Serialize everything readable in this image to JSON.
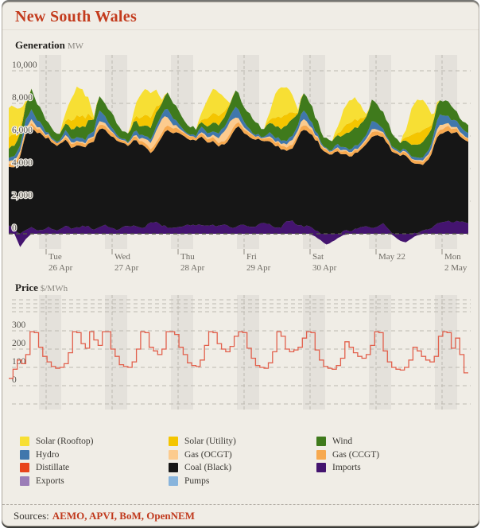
{
  "title": "New South Wales",
  "colors": {
    "background": "#F0EDE6",
    "band": "#E4E1DB",
    "grid": "#BDB9B0",
    "zero_line": "#55524C",
    "title_red": "#C33B1D",
    "text_gray": "#6E6B64",
    "price_line": "#E2604C",
    "source_red": "#C0391D",
    "fuels": {
      "solar_rooftop": "#F7DF34",
      "solar_utility": "#F4C500",
      "wind": "#3F7A1C",
      "hydro": "#4077AC",
      "gas_ocgt": "#FCCB8E",
      "gas_ccgt": "#F7A94F",
      "distillate": "#E8431C",
      "coal": "#161616",
      "imports": "#44146F",
      "exports": "#9B7DB7",
      "pumps": "#88B4DC"
    }
  },
  "generation": {
    "label": "Generation",
    "unit": "MW",
    "y_ticks": [
      {
        "v": 0,
        "label": "0"
      },
      {
        "v": 2000,
        "label": "2,000"
      },
      {
        "v": 4000,
        "label": "4,000"
      },
      {
        "v": 6000,
        "label": "6,000"
      },
      {
        "v": 8000,
        "label": "8,000"
      },
      {
        "v": 10000,
        "label": "10,000"
      }
    ],
    "x_ticks": [
      {
        "l1": "Tue",
        "l2": "26 Apr"
      },
      {
        "l1": "Wed",
        "l2": "27 Apr"
      },
      {
        "l1": "Thu",
        "l2": "28 Apr"
      },
      {
        "l1": "Fri",
        "l2": "29 Apr"
      },
      {
        "l1": "Sat",
        "l2": "30 Apr"
      },
      {
        "l1": "May 22",
        "l2": ""
      },
      {
        "l1": "Mon",
        "l2": "2 May"
      }
    ]
  },
  "price": {
    "label": "Price",
    "unit": "$/MWh",
    "y_ticks": [
      {
        "v": 0,
        "label": "0"
      },
      {
        "v": 100,
        "label": "100"
      },
      {
        "v": 200,
        "label": "200"
      },
      {
        "v": 300,
        "label": "300"
      }
    ]
  },
  "legend": {
    "columns": [
      [
        {
          "label": "Solar (Rooftop)",
          "key": "solar_rooftop"
        },
        {
          "label": "Hydro",
          "key": "hydro"
        },
        {
          "label": "Distillate",
          "key": "distillate"
        },
        {
          "label": "Exports",
          "key": "exports"
        }
      ],
      [
        {
          "label": "Solar (Utility)",
          "key": "solar_utility"
        },
        {
          "label": "Gas (OCGT)",
          "key": "gas_ocgt"
        },
        {
          "label": "Coal (Black)",
          "key": "coal"
        },
        {
          "label": "Pumps",
          "key": "pumps"
        }
      ],
      [
        {
          "label": "Wind",
          "key": "wind"
        },
        {
          "label": "Gas (CCGT)",
          "key": "gas_ccgt"
        },
        {
          "label": "Imports",
          "key": "imports"
        }
      ]
    ]
  },
  "sources": {
    "prefix": "Sources:",
    "list": "AEMO, APVI, BoM, OpenNEM"
  },
  "chart_data": [
    {
      "type": "area",
      "title": "Generation",
      "ylabel": "MW",
      "ylim": [
        -1000,
        11000
      ],
      "x_hours_step": 2,
      "x_start_label": "Mon 25 Apr 10:30",
      "series": [
        {
          "name": "Imports",
          "key": "imports",
          "values": [
            500,
            300,
            0,
            150,
            400,
            300,
            200,
            350,
            300,
            250,
            400,
            350,
            400,
            450,
            400,
            300,
            450,
            500,
            350,
            300,
            350,
            420,
            550,
            400,
            350,
            650,
            800,
            500,
            350,
            400,
            450,
            400,
            550,
            600,
            500,
            450,
            600,
            500,
            550,
            350,
            500,
            550,
            400,
            450,
            600,
            650,
            550,
            400,
            350,
            750,
            850,
            550,
            400,
            450,
            300,
            0,
            0,
            0,
            0,
            100,
            200,
            300,
            350,
            400,
            420,
            500,
            550,
            300,
            0,
            0,
            0,
            0,
            100,
            150,
            300,
            550,
            650,
            750,
            770,
            800,
            700,
            650
          ]
        },
        {
          "name": "Coal (Black)",
          "key": "coal",
          "values": [
            3750,
            3850,
            4600,
            5900,
            6150,
            5950,
            5700,
            5500,
            5200,
            5100,
            5300,
            5100,
            5000,
            4800,
            5100,
            5500,
            6000,
            5900,
            5650,
            5450,
            5150,
            5050,
            5250,
            5050,
            4950,
            4300,
            4600,
            5450,
            6000,
            5850,
            5600,
            5500,
            5250,
            5150,
            5350,
            5150,
            5100,
            4800,
            4900,
            5550,
            6050,
            5850,
            5600,
            5400,
            5100,
            5000,
            5200,
            4950,
            4850,
            4300,
            4500,
            5350,
            5900,
            5750,
            5500,
            5300,
            5000,
            4900,
            5050,
            4750,
            4600,
            4550,
            4700,
            5100,
            5650,
            5550,
            5400,
            5200,
            4900,
            4800,
            4900,
            4400,
            4150,
            4100,
            4300,
            4900,
            5450,
            5550,
            5450,
            5350,
            5100,
            5000
          ]
        },
        {
          "name": "Gas (CCGT)",
          "key": "gas_ccgt",
          "values": [
            200,
            210,
            190,
            240,
            260,
            230,
            200,
            180,
            160,
            150,
            190,
            210,
            220,
            200,
            210,
            230,
            280,
            250,
            220,
            190,
            160,
            150,
            200,
            230,
            240,
            220,
            230,
            250,
            300,
            270,
            240,
            200,
            170,
            160,
            210,
            220,
            220,
            200,
            210,
            230,
            280,
            250,
            220,
            190,
            160,
            150,
            200,
            220,
            220,
            220,
            230,
            250,
            300,
            270,
            240,
            200,
            170,
            160,
            190,
            200,
            190,
            180,
            190,
            210,
            260,
            240,
            220,
            190,
            160,
            150,
            170,
            180,
            180,
            180,
            190,
            230,
            300,
            280,
            260,
            220,
            190,
            180
          ]
        },
        {
          "name": "Gas (OCGT)",
          "key": "gas_ocgt",
          "values": [
            150,
            220,
            180,
            120,
            250,
            150,
            80,
            40,
            20,
            20,
            100,
            90,
            70,
            60,
            60,
            90,
            220,
            150,
            80,
            40,
            20,
            20,
            80,
            120,
            250,
            400,
            750,
            850,
            500,
            200,
            100,
            40,
            20,
            20,
            70,
            110,
            150,
            300,
            600,
            750,
            400,
            150,
            80,
            40,
            20,
            20,
            90,
            100,
            100,
            200,
            300,
            250,
            350,
            200,
            100,
            40,
            20,
            20,
            60,
            70,
            70,
            60,
            60,
            100,
            200,
            120,
            60,
            40,
            20,
            20,
            50,
            60,
            60,
            60,
            100,
            150,
            300,
            200,
            150,
            100,
            50,
            40
          ]
        },
        {
          "name": "Hydro",
          "key": "hydro",
          "values": [
            250,
            280,
            320,
            500,
            620,
            370,
            260,
            130,
            90,
            80,
            280,
            230,
            190,
            210,
            240,
            300,
            620,
            420,
            260,
            110,
            80,
            80,
            260,
            220,
            190,
            210,
            240,
            280,
            560,
            390,
            230,
            130,
            100,
            90,
            300,
            260,
            240,
            270,
            290,
            330,
            620,
            430,
            270,
            110,
            80,
            80,
            260,
            220,
            190,
            220,
            240,
            290,
            560,
            410,
            240,
            110,
            80,
            80,
            210,
            190,
            190,
            200,
            210,
            250,
            510,
            360,
            220,
            110,
            80,
            80,
            160,
            140,
            140,
            170,
            240,
            360,
            660,
            510,
            430,
            370,
            330,
            310
          ]
        },
        {
          "name": "Wind",
          "key": "wind",
          "values": [
            500,
            650,
            750,
            1000,
            1200,
            950,
            850,
            600,
            450,
            400,
            420,
            550,
            650,
            750,
            850,
            700,
            900,
            850,
            800,
            700,
            550,
            500,
            500,
            580,
            620,
            700,
            800,
            680,
            1000,
            900,
            820,
            600,
            450,
            380,
            330,
            420,
            480,
            550,
            620,
            680,
            1050,
            1000,
            950,
            800,
            620,
            560,
            500,
            650,
            800,
            900,
            950,
            800,
            1050,
            950,
            870,
            700,
            560,
            530,
            620,
            800,
            950,
            1100,
            1200,
            1050,
            1250,
            1150,
            1050,
            900,
            720,
            620,
            520,
            650,
            800,
            950,
            900,
            880,
            950,
            850,
            780,
            600,
            520,
            480
          ]
        },
        {
          "name": "Solar (Utility)",
          "key": "solar_utility",
          "values": [
            700,
            660,
            420,
            60,
            0,
            0,
            0,
            0,
            0,
            0,
            170,
            540,
            680,
            650,
            410,
            50,
            0,
            0,
            0,
            0,
            0,
            0,
            160,
            510,
            640,
            610,
            380,
            50,
            0,
            0,
            0,
            0,
            0,
            0,
            150,
            480,
            600,
            570,
            360,
            45,
            0,
            0,
            0,
            0,
            0,
            0,
            175,
            560,
            700,
            665,
            420,
            55,
            0,
            0,
            0,
            0,
            0,
            0,
            140,
            450,
            560,
            530,
            340,
            45,
            0,
            0,
            0,
            0,
            0,
            0,
            190,
            600,
            750,
            710,
            450,
            60,
            0,
            0,
            0,
            0,
            0,
            0
          ]
        },
        {
          "name": "Solar (Rooftop)",
          "key": "solar_rooftop",
          "values": [
            1850,
            1750,
            1100,
            160,
            0,
            0,
            0,
            0,
            0,
            0,
            430,
            1360,
            1700,
            1620,
            1020,
            130,
            0,
            0,
            0,
            0,
            0,
            0,
            400,
            1280,
            1600,
            1520,
            960,
            120,
            0,
            0,
            0,
            0,
            0,
            0,
            380,
            1200,
            1500,
            1430,
            900,
            115,
            0,
            0,
            0,
            0,
            0,
            0,
            450,
            1440,
            1800,
            1710,
            1080,
            140,
            0,
            0,
            0,
            0,
            0,
            0,
            350,
            1120,
            1400,
            1330,
            840,
            110,
            0,
            0,
            0,
            0,
            0,
            0,
            500,
            1600,
            2000,
            1900,
            1200,
            155,
            0,
            0,
            0,
            0,
            0,
            0
          ]
        }
      ],
      "exports_negative": {
        "name": "Exports",
        "key": "imports",
        "values": [
          0,
          0,
          -800,
          -300,
          0,
          0,
          0,
          0,
          0,
          0,
          0,
          0,
          0,
          0,
          0,
          0,
          0,
          0,
          0,
          0,
          0,
          0,
          0,
          0,
          0,
          0,
          0,
          0,
          0,
          0,
          0,
          0,
          0,
          0,
          0,
          0,
          0,
          0,
          0,
          0,
          0,
          0,
          0,
          0,
          0,
          0,
          0,
          0,
          0,
          0,
          0,
          0,
          0,
          0,
          -150,
          -400,
          -650,
          -500,
          -250,
          -80,
          0,
          0,
          0,
          0,
          0,
          0,
          0,
          0,
          -150,
          -450,
          -500,
          -300,
          -100,
          0,
          0,
          0,
          0,
          0,
          0,
          0,
          0,
          0
        ]
      }
    },
    {
      "type": "step-line",
      "title": "Price",
      "ylabel": "$/MWh",
      "ylim": [
        0,
        300
      ],
      "x_hours_step": 1.5,
      "values": [
        40,
        90,
        140,
        120,
        170,
        295,
        290,
        210,
        160,
        130,
        105,
        95,
        100,
        120,
        180,
        295,
        290,
        230,
        205,
        295,
        250,
        220,
        295,
        295,
        200,
        160,
        115,
        105,
        100,
        130,
        200,
        295,
        290,
        210,
        190,
        170,
        200,
        295,
        295,
        280,
        210,
        170,
        125,
        110,
        105,
        140,
        220,
        295,
        290,
        230,
        200,
        185,
        215,
        270,
        295,
        290,
        205,
        150,
        110,
        100,
        95,
        125,
        185,
        295,
        270,
        200,
        185,
        195,
        210,
        260,
        295,
        290,
        195,
        140,
        105,
        95,
        90,
        110,
        150,
        240,
        210,
        180,
        160,
        150,
        170,
        220,
        295,
        290,
        190,
        130,
        100,
        90,
        85,
        100,
        140,
        210,
        190,
        160,
        140,
        130,
        160,
        270,
        295,
        290,
        205,
        260,
        170,
        70
      ]
    }
  ]
}
